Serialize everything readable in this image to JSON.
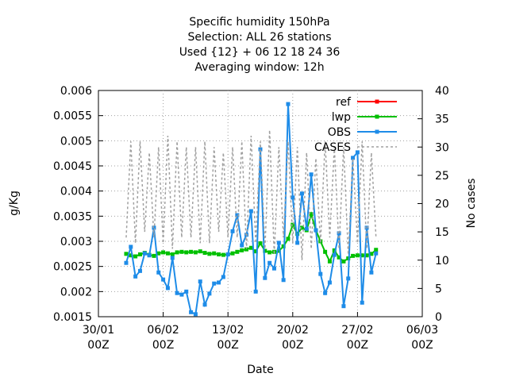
{
  "chart_data": {
    "type": "line",
    "title": [
      "Specific humidity 150hPa",
      "Selection: ALL     26 stations",
      "Used {12} + 06 12 18 24 36",
      "Averaging window: 12h"
    ],
    "xlabel": "Date",
    "ylabel": "g/Kg",
    "y2label": "No cases",
    "xlim": [
      "30/01 00Z",
      "06/03 00Z"
    ],
    "xticks": [
      {
        "value": "30/01 00Z",
        "label": "30/01\n00Z"
      },
      {
        "value": "06/02 00Z",
        "label": "06/02\n00Z"
      },
      {
        "value": "13/02 00Z",
        "label": "13/02\n00Z"
      },
      {
        "value": "20/02 00Z",
        "label": "20/02\n00Z"
      },
      {
        "value": "27/02 00Z",
        "label": "27/02\n00Z"
      },
      {
        "value": "06/03 00Z",
        "label": "06/03\n00Z"
      }
    ],
    "ylim": [
      0.0015,
      0.006
    ],
    "yticks": [
      0.0015,
      0.002,
      0.0025,
      0.003,
      0.0035,
      0.004,
      0.0045,
      0.005,
      0.0055,
      0.006
    ],
    "y2lim": [
      0,
      40
    ],
    "y2ticks": [
      0,
      5,
      10,
      15,
      20,
      25,
      30,
      35,
      40
    ],
    "grid": true,
    "legend": "top-right",
    "x": [
      "02/02 00Z",
      "02/02 12Z",
      "03/02 00Z",
      "03/02 12Z",
      "04/02 00Z",
      "04/02 12Z",
      "05/02 00Z",
      "05/02 12Z",
      "06/02 00Z",
      "06/02 12Z",
      "07/02 00Z",
      "07/02 12Z",
      "08/02 00Z",
      "08/02 12Z",
      "09/02 00Z",
      "09/02 12Z",
      "10/02 00Z",
      "10/02 12Z",
      "11/02 00Z",
      "11/02 12Z",
      "12/02 00Z",
      "12/02 12Z",
      "13/02 00Z",
      "13/02 12Z",
      "14/02 00Z",
      "14/02 12Z",
      "15/02 00Z",
      "15/02 12Z",
      "16/02 00Z",
      "16/02 12Z",
      "17/02 00Z",
      "17/02 12Z",
      "18/02 00Z",
      "18/02 12Z",
      "19/02 00Z",
      "19/02 12Z",
      "20/02 00Z",
      "20/02 12Z",
      "21/02 00Z",
      "21/02 12Z",
      "22/02 00Z",
      "22/02 12Z",
      "23/02 00Z",
      "23/02 12Z",
      "24/02 00Z",
      "24/02 12Z",
      "25/02 00Z",
      "25/02 12Z",
      "26/02 00Z",
      "26/02 12Z",
      "27/02 00Z",
      "27/02 12Z",
      "28/02 00Z",
      "28/02 12Z",
      "01/03 00Z"
    ],
    "series": [
      {
        "name": "ref",
        "color": "#ff0000",
        "marker": true,
        "values": [
          null,
          null,
          null,
          null,
          null,
          null,
          null,
          null,
          null,
          null,
          null,
          null,
          null,
          null,
          null,
          null,
          null,
          null,
          null,
          null,
          null,
          null,
          null,
          null,
          null,
          null,
          null,
          null,
          null,
          null,
          null,
          null,
          null,
          null,
          null,
          null,
          null,
          null,
          null,
          null,
          null,
          null,
          null,
          null,
          null,
          null,
          null,
          null,
          null,
          null,
          null,
          null,
          null,
          null,
          null
        ]
      },
      {
        "name": "lwp",
        "color": "#00c000",
        "marker": true,
        "values": [
          0.00275,
          0.00272,
          0.0027,
          0.00274,
          0.00277,
          0.00273,
          0.00271,
          0.00276,
          0.00278,
          0.00276,
          0.00274,
          0.00278,
          0.00279,
          0.00278,
          0.00279,
          0.00278,
          0.0028,
          0.00277,
          0.00275,
          0.00276,
          0.00274,
          0.00273,
          0.00274,
          0.00276,
          0.00279,
          0.00282,
          0.00284,
          0.00287,
          0.0028,
          0.00296,
          0.00281,
          0.00278,
          0.00279,
          0.00281,
          0.0029,
          0.00305,
          0.00333,
          0.00315,
          0.00327,
          0.00322,
          0.00354,
          0.00322,
          0.003,
          0.00279,
          0.0026,
          0.00282,
          0.00268,
          0.0026,
          0.00266,
          0.00271,
          0.00272,
          0.00272,
          0.00272,
          0.00275,
          0.00283
        ]
      },
      {
        "name": "OBS",
        "color": "#1e8ce8",
        "marker": true,
        "values": [
          0.00257,
          0.00289,
          0.0023,
          0.00241,
          0.00276,
          0.00272,
          0.00327,
          0.00238,
          0.00224,
          0.00207,
          0.00267,
          0.00197,
          0.00194,
          0.002,
          0.00159,
          0.00155,
          0.0022,
          0.00174,
          0.00196,
          0.00216,
          0.00218,
          0.00229,
          0.00274,
          0.0032,
          0.00352,
          0.00292,
          0.00313,
          0.0036,
          0.002,
          0.00483,
          0.00227,
          0.00257,
          0.00246,
          0.00297,
          0.00223,
          0.00573,
          0.00387,
          0.00297,
          0.00395,
          0.00325,
          0.00433,
          0.00322,
          0.00235,
          0.00197,
          0.00218,
          0.00273,
          0.00316,
          0.00171,
          0.00226,
          0.00466,
          0.00477,
          0.00178,
          0.00327,
          0.00238,
          0.00276
        ]
      },
      {
        "name": "CASES",
        "color": "#a0a0a0",
        "marker": false,
        "dashed": true,
        "axis": "y2",
        "values": [
          14,
          31,
          13,
          31,
          15,
          29,
          14,
          30,
          13,
          32,
          12,
          31,
          14,
          30,
          14,
          30,
          13,
          31,
          13,
          30,
          15,
          29,
          14,
          30,
          14,
          31,
          12,
          32,
          13,
          31,
          12,
          33,
          11,
          30,
          14,
          31,
          13,
          30,
          10,
          29,
          12,
          28,
          13,
          31,
          14,
          30,
          12,
          30,
          11,
          28,
          13,
          31,
          12,
          29,
          14
        ]
      }
    ]
  }
}
